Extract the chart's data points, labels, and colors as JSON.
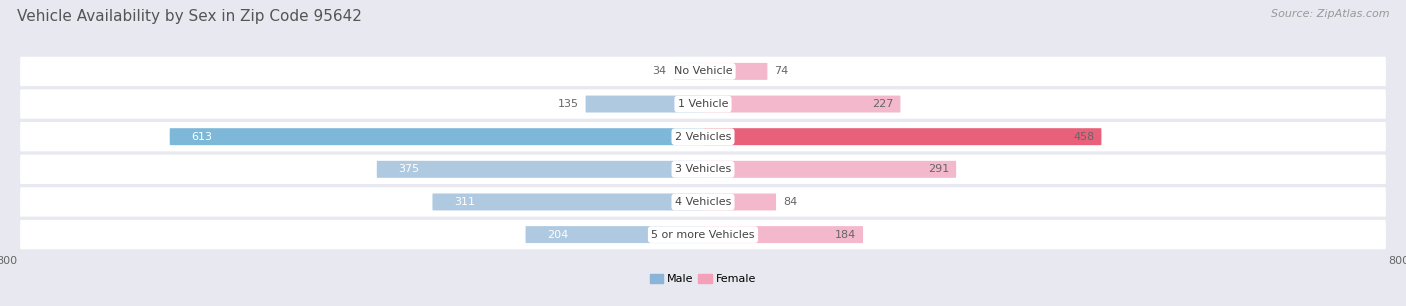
{
  "title": "Vehicle Availability by Sex in Zip Code 95642",
  "source": "Source: ZipAtlas.com",
  "categories": [
    "No Vehicle",
    "1 Vehicle",
    "2 Vehicles",
    "3 Vehicles",
    "4 Vehicles",
    "5 or more Vehicles"
  ],
  "male_values": [
    34,
    135,
    613,
    375,
    311,
    204
  ],
  "female_values": [
    74,
    227,
    458,
    291,
    84,
    184
  ],
  "male_color": "#8ab4d8",
  "female_color": "#f4a0b8",
  "male_color_strong": "#e75480",
  "female_color_strong": "#d94f7a",
  "row_bg_odd": "#f0f0f5",
  "row_bg_even": "#e6e6ee",
  "fig_bg": "#e8e8f0",
  "axis_max": 800,
  "label_color_outside": "#666666",
  "label_color_inside_white": "#ffffff",
  "title_color": "#555555",
  "source_color": "#999999",
  "legend_male": "Male",
  "legend_female": "Female",
  "title_fontsize": 11,
  "label_fontsize": 8,
  "source_fontsize": 8
}
